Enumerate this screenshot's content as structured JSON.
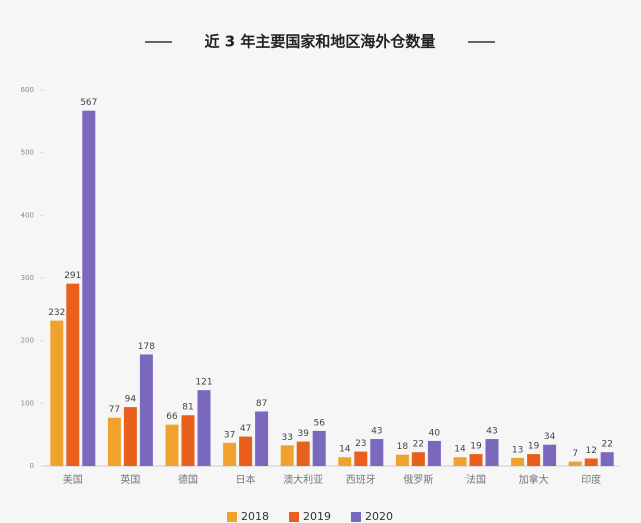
{
  "chart_data": {
    "type": "bar",
    "title": "近 3 年主要国家和地区海外仓数量",
    "categories": [
      "美国",
      "英国",
      "德国",
      "日本",
      "澳大利亚",
      "西班牙",
      "俄罗斯",
      "法国",
      "加拿大",
      "印度"
    ],
    "series": [
      {
        "name": "2018",
        "color": "#f0a32c",
        "values": [
          232,
          77,
          66,
          37,
          33,
          14,
          18,
          14,
          13,
          7
        ]
      },
      {
        "name": "2019",
        "color": "#e8601c",
        "values": [
          291,
          94,
          81,
          47,
          39,
          23,
          22,
          19,
          19,
          12
        ]
      },
      {
        "name": "2020",
        "color": "#7a68bd",
        "values": [
          567,
          178,
          121,
          87,
          56,
          43,
          40,
          43,
          34,
          22
        ]
      }
    ],
    "ylim": [
      0,
      600
    ],
    "yticks": [
      0,
      100,
      200,
      300,
      400,
      500,
      600
    ],
    "legend": "bottom"
  }
}
